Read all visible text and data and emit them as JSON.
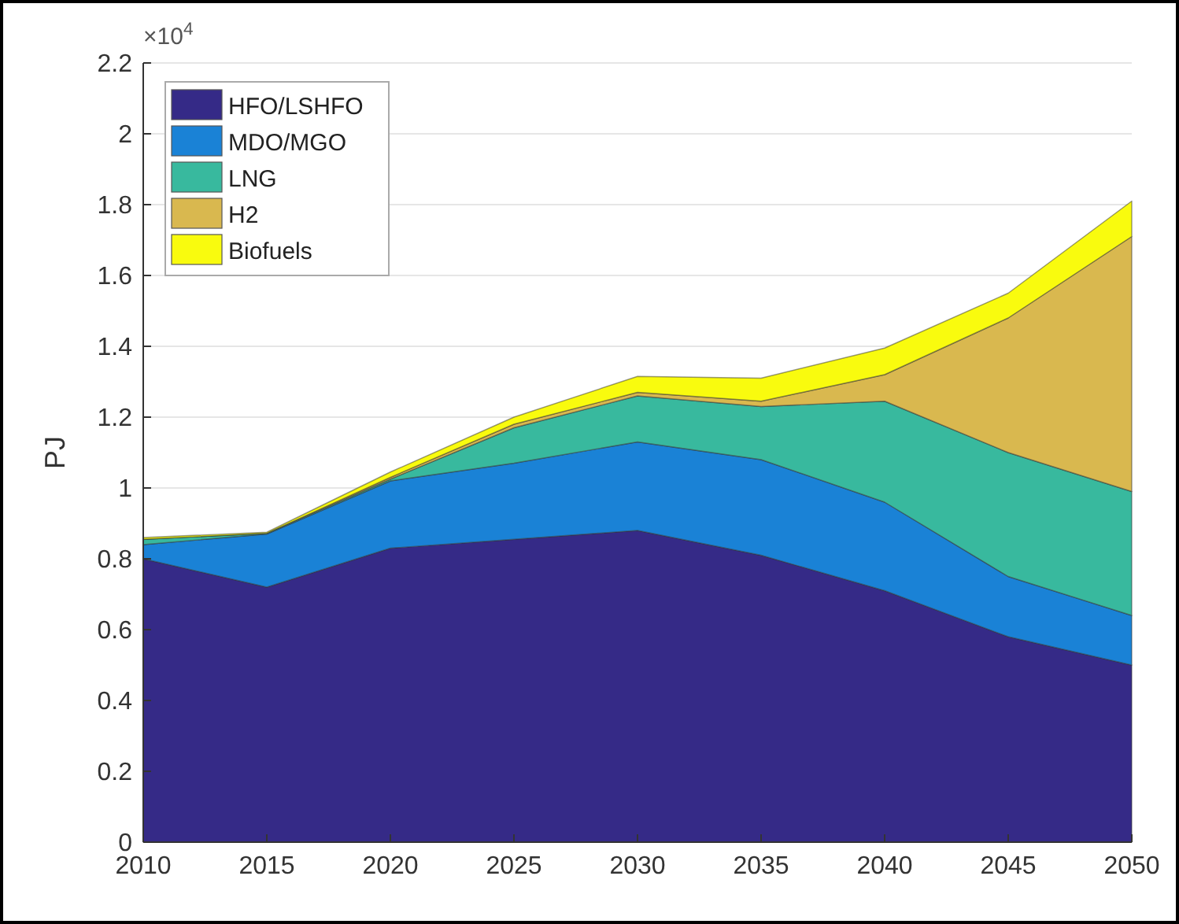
{
  "chart_data": {
    "type": "area",
    "stacked": true,
    "ylabel": "PJ",
    "annotations": [
      "×10$^{4}$"
    ],
    "x": [
      2010,
      2015,
      2020,
      2025,
      2030,
      2035,
      2040,
      2045,
      2050
    ],
    "xlim": [
      2010,
      2050
    ],
    "xticks": [
      2010,
      2015,
      2020,
      2025,
      2030,
      2035,
      2040,
      2045,
      2050
    ],
    "ylim": [
      0,
      2.2
    ],
    "yticks": [
      0,
      0.2,
      0.4,
      0.6,
      0.8,
      1,
      1.2,
      1.4,
      1.6,
      1.8,
      2,
      2.2
    ],
    "grid": "y",
    "legend": "top left",
    "series": [
      {
        "name": "HFO/LSHFO",
        "color": "#352a87",
        "values": [
          0.8,
          0.72,
          0.83,
          0.855,
          0.88,
          0.81,
          0.71,
          0.58,
          0.5
        ]
      },
      {
        "name": "MDO/MGO",
        "color": "#1a82d6",
        "values": [
          0.04,
          0.15,
          0.19,
          0.215,
          0.25,
          0.27,
          0.25,
          0.17,
          0.14
        ]
      },
      {
        "name": "LNG",
        "color": "#38b99e",
        "values": [
          0.015,
          0.002,
          0.005,
          0.1,
          0.13,
          0.15,
          0.285,
          0.35,
          0.35
        ]
      },
      {
        "name": "H2",
        "color": "#d9b84f",
        "values": [
          0,
          0,
          0.005,
          0.01,
          0.01,
          0.015,
          0.075,
          0.38,
          0.72
        ]
      },
      {
        "name": "Biofuels",
        "color": "#f9fb0e",
        "values": [
          0.005,
          0.003,
          0.015,
          0.02,
          0.045,
          0.065,
          0.075,
          0.07,
          0.1
        ]
      }
    ]
  }
}
